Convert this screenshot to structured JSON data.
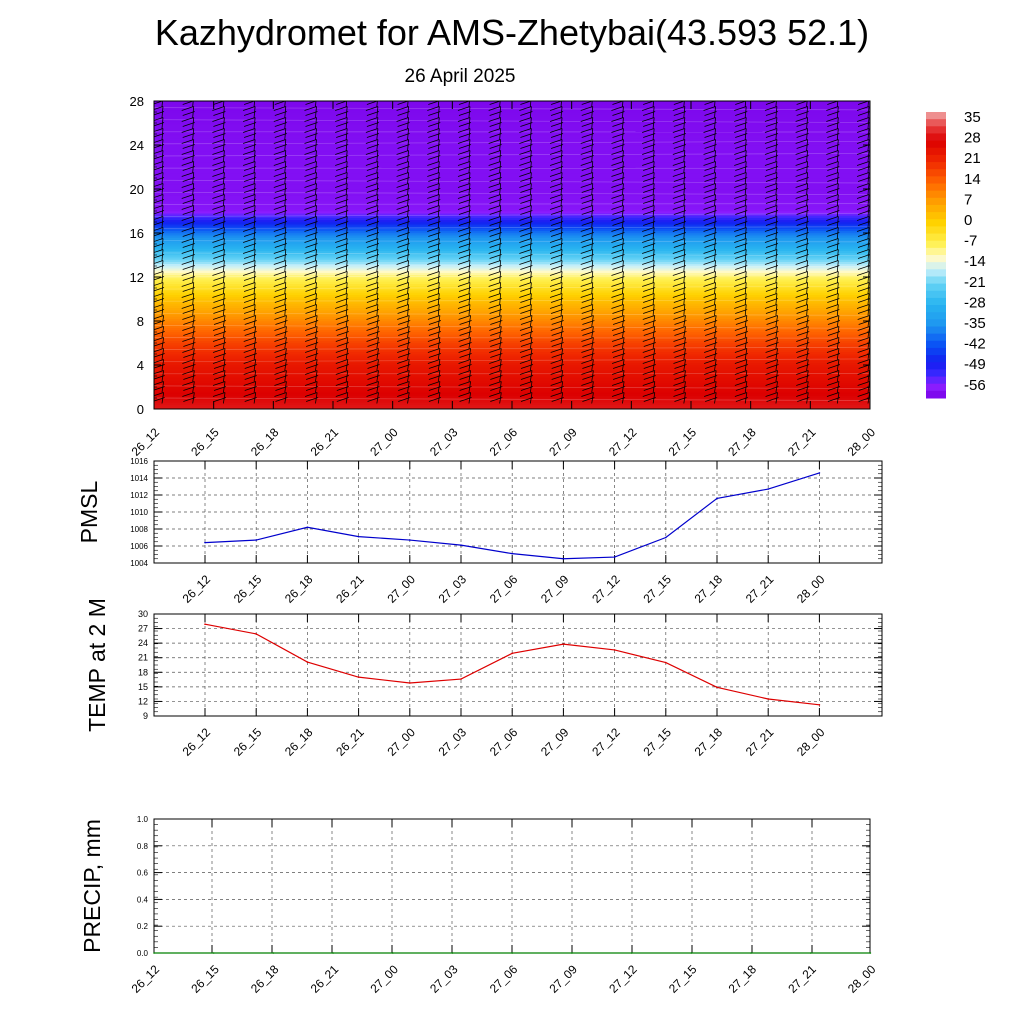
{
  "title": "Kazhydromet for AMS-Zhetybai(43.593 52.1)",
  "subtitle": "26 April 2025",
  "time_labels": [
    "26_12",
    "26_15",
    "26_18",
    "26_21",
    "27_00",
    "27_03",
    "27_06",
    "27_09",
    "27_12",
    "27_15",
    "27_18",
    "27_21",
    "28_00"
  ],
  "chart_data": [
    {
      "type": "heatmap",
      "title": "",
      "xlabel": "",
      "ylabel": "",
      "x": [
        "26_12",
        "26_15",
        "26_18",
        "26_21",
        "27_00",
        "27_03",
        "27_06",
        "27_09",
        "27_12",
        "27_15",
        "27_18",
        "27_21",
        "28_00"
      ],
      "y_ticks": [
        0,
        4,
        8,
        12,
        16,
        20,
        24,
        28
      ],
      "ylim": [
        0,
        28
      ],
      "colorbar": {
        "labels": [
          "35",
          "28",
          "21",
          "14",
          "7",
          "0",
          "-7",
          "-14",
          "-21",
          "-28",
          "-35",
          "-42",
          "-49",
          "-56"
        ],
        "range": [
          -60,
          38
        ]
      },
      "vertical_profile": [
        {
          "y": 0,
          "value": 30
        },
        {
          "y": 4,
          "value": 24
        },
        {
          "y": 6,
          "value": 18
        },
        {
          "y": 8,
          "value": 10
        },
        {
          "y": 10,
          "value": 2
        },
        {
          "y": 12,
          "value": -8
        },
        {
          "y": 13,
          "value": -16
        },
        {
          "y": 14,
          "value": -24
        },
        {
          "y": 16,
          "value": -38
        },
        {
          "y": 17,
          "value": -48
        },
        {
          "y": 18,
          "value": -57
        },
        {
          "y": 20,
          "value": -58
        },
        {
          "y": 24,
          "value": -58
        },
        {
          "y": 28,
          "value": -59
        }
      ],
      "wind_barbs": true,
      "legend": "right"
    },
    {
      "type": "line",
      "ylabel": "PMSL",
      "x": [
        "26_12",
        "26_15",
        "26_18",
        "26_21",
        "27_00",
        "27_03",
        "27_06",
        "27_09",
        "27_12",
        "27_15",
        "27_18",
        "27_21",
        "28_00"
      ],
      "ylim": [
        1004,
        1016
      ],
      "y_ticks": [
        1004,
        1006,
        1008,
        1010,
        1012,
        1014,
        1016
      ],
      "series": [
        {
          "values": [
            1006.4,
            1006.7,
            1008.2,
            1007.1,
            1006.7,
            1006.1,
            1005.1,
            1004.5,
            1004.7,
            1007.0,
            1011.6,
            1012.7,
            1014.6
          ],
          "color": "#0000cc"
        }
      ],
      "grid": true
    },
    {
      "type": "line",
      "ylabel": "TEMP at 2 M",
      "x": [
        "26_12",
        "26_15",
        "26_18",
        "26_21",
        "27_00",
        "27_03",
        "27_06",
        "27_09",
        "27_12",
        "27_15",
        "27_18",
        "27_21",
        "28_00"
      ],
      "ylim": [
        9,
        30
      ],
      "y_ticks": [
        9,
        12,
        15,
        18,
        21,
        24,
        27,
        30
      ],
      "series": [
        {
          "values": [
            27.9,
            25.9,
            20.1,
            17.0,
            15.8,
            16.6,
            21.9,
            23.8,
            22.6,
            20.0,
            14.9,
            12.5,
            11.3
          ],
          "color": "#dd0000"
        }
      ],
      "grid": true
    },
    {
      "type": "line",
      "ylabel": "PRECIP, mm",
      "x": [
        "26_12",
        "26_15",
        "26_18",
        "26_21",
        "27_00",
        "27_03",
        "27_06",
        "27_09",
        "27_12",
        "27_15",
        "27_18",
        "27_21",
        "28_00"
      ],
      "ylim": [
        0,
        1
      ],
      "y_ticks": [
        "0.0",
        "0.2",
        "0.4",
        "0.6",
        "0.8",
        "1.0"
      ],
      "series": [
        {
          "values": [
            0,
            0,
            0,
            0,
            0,
            0,
            0,
            0,
            0,
            0,
            0,
            0,
            0
          ],
          "color": "#008000"
        }
      ],
      "grid": true
    }
  ]
}
